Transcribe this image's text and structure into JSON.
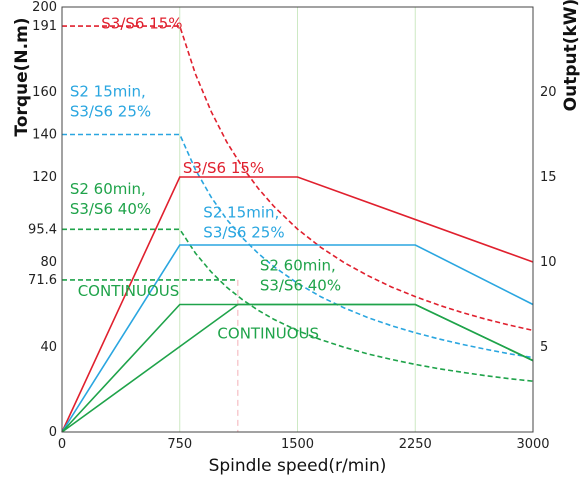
{
  "chart_data": {
    "type": "line",
    "xlabel": "Spindle speed(r/min)",
    "ylabel": "Torque(N.m)",
    "y2label": "Output(kW)",
    "xlim": [
      0,
      3000
    ],
    "ylim": [
      0,
      200
    ],
    "y2lim": [
      0,
      25
    ],
    "x_ticks": [
      "0",
      "750",
      "1500",
      "2250",
      "3000"
    ],
    "x_tick_values": [
      0,
      750,
      1500,
      2250,
      3000
    ],
    "y_ticks": [
      "0",
      "40",
      "71.6",
      "80",
      "95.4",
      "120",
      "140",
      "160",
      "191",
      "200"
    ],
    "y_tick_values": [
      0,
      40,
      71.6,
      80,
      95.4,
      120,
      140,
      160,
      191,
      200
    ],
    "y2_ticks": [
      "5",
      "10",
      "15",
      "20"
    ],
    "y2_tick_values": [
      5,
      10,
      15,
      20
    ],
    "grid": true,
    "colors": {
      "red": "#e0202e",
      "blue": "#2aa6e0",
      "green": "#1fa34a",
      "grid": "#cde9c4",
      "marker": "#f3b0b8"
    },
    "series": [
      {
        "name": "S3/S6 15%",
        "axis": "torque",
        "style": "dashed",
        "color": "#e0202e",
        "x": [
          0,
          750,
          850,
          950,
          1050,
          1150,
          1250,
          1350,
          1500,
          1650,
          1800,
          1950,
          2100,
          2250,
          2400,
          2550,
          2700,
          2850,
          3000
        ],
        "y": [
          191,
          191,
          168.5,
          150.8,
          136.4,
          124.5,
          114.6,
          106.1,
          95.5,
          86.8,
          79.6,
          73.5,
          68.2,
          63.7,
          59.7,
          56.2,
          53.1,
          50.3,
          47.8
        ]
      },
      {
        "name": "S2 15min, S3/S6 25%",
        "axis": "torque",
        "style": "dashed",
        "color": "#2aa6e0",
        "x": [
          0,
          750,
          850,
          950,
          1050,
          1150,
          1250,
          1350,
          1500,
          1650,
          1800,
          1950,
          2100,
          2250,
          2400,
          2550,
          2700,
          2850,
          3000
        ],
        "y": [
          140,
          140,
          123.5,
          110.5,
          100,
          91.3,
          84,
          77.8,
          70,
          63.6,
          58.3,
          53.8,
          50,
          46.7,
          43.8,
          41.2,
          38.9,
          36.8,
          35
        ]
      },
      {
        "name": "S2 60min, S3/S6 40%",
        "axis": "torque",
        "style": "dashed",
        "color": "#1fa34a",
        "x": [
          0,
          750,
          850,
          950,
          1050,
          1150,
          1250,
          1350,
          1500,
          1650,
          1800,
          1950,
          2100,
          2250,
          2400,
          2550,
          2700,
          2850,
          3000
        ],
        "y": [
          95.4,
          95.4,
          84.2,
          75.3,
          68.1,
          62.2,
          57.2,
          53,
          47.7,
          43.4,
          39.8,
          36.7,
          34.1,
          31.8,
          29.8,
          28.1,
          26.5,
          25.1,
          23.9
        ]
      },
      {
        "name": "CONTINUOUS",
        "axis": "torque",
        "style": "dashed",
        "color": "#1fa34a",
        "x": [
          0,
          1120
        ],
        "y": [
          71.6,
          71.6
        ]
      },
      {
        "name": "S3/S6 15%",
        "axis": "output",
        "style": "solid",
        "color": "#e0202e",
        "x": [
          0,
          750,
          1500,
          3000
        ],
        "y": [
          0,
          15,
          15,
          10
        ]
      },
      {
        "name": "S2 15min, S3/S6 25%",
        "axis": "output",
        "style": "solid",
        "color": "#2aa6e0",
        "x": [
          0,
          750,
          2250,
          3000
        ],
        "y": [
          0,
          11,
          11,
          7.5
        ]
      },
      {
        "name": "S2 60min, S3/S6 40%",
        "axis": "output",
        "style": "solid",
        "color": "#1fa34a",
        "x": [
          0,
          750,
          2250,
          3000
        ],
        "y": [
          0,
          7.5,
          7.5,
          4.2
        ]
      },
      {
        "name": "CONTINUOUS",
        "axis": "output",
        "style": "solid",
        "color": "#1fa34a",
        "x": [
          0,
          1120,
          2250,
          3000
        ],
        "y": [
          0,
          7.5,
          7.5,
          4.2
        ]
      }
    ],
    "marker_line_x": 1120,
    "annotations": [
      {
        "lines": [
          "S3/S6 15%"
        ],
        "color": "#e0202e",
        "x": 250,
        "y": 190
      },
      {
        "lines": [
          "S2 15min,",
          "S3/S6 25%"
        ],
        "color": "#2aa6e0",
        "x": 50,
        "y": 158
      },
      {
        "lines": [
          "S2 60min,",
          "S3/S6 40%"
        ],
        "color": "#1fa34a",
        "x": 50,
        "y": 112
      },
      {
        "lines": [
          "CONTINUOUS"
        ],
        "color": "#1fa34a",
        "x": 100,
        "y": 64
      },
      {
        "lines": [
          "S3/S6 15%"
        ],
        "color": "#e0202e",
        "x": 770,
        "y": 122
      },
      {
        "lines": [
          "S2 15min,",
          "S3/S6 25%"
        ],
        "color": "#2aa6e0",
        "x": 900,
        "y": 101
      },
      {
        "lines": [
          "S2 60min,",
          "S3/S6 40%"
        ],
        "color": "#1fa34a",
        "x": 1260,
        "y": 76
      },
      {
        "lines": [
          "CONTINUOUS"
        ],
        "color": "#1fa34a",
        "x": 990,
        "y": 44
      }
    ]
  }
}
